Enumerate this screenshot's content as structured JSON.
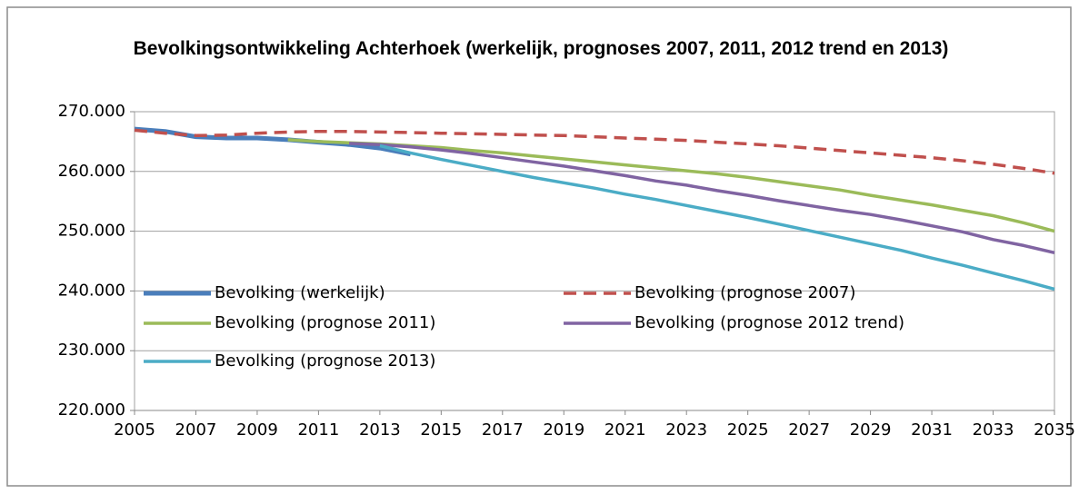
{
  "chart_data": {
    "type": "line",
    "title": "Bevolkingsontwikkeling Achterhoek (werkelijk,  prognoses 2007, 2011, 2012 trend en 2013)",
    "x": [
      2005,
      2006,
      2007,
      2008,
      2009,
      2010,
      2011,
      2012,
      2013,
      2014,
      2015,
      2016,
      2017,
      2018,
      2019,
      2020,
      2021,
      2022,
      2023,
      2024,
      2025,
      2026,
      2027,
      2028,
      2029,
      2030,
      2031,
      2032,
      2033,
      2034,
      2035
    ],
    "xlim": [
      2005,
      2035
    ],
    "xticks": [
      2005,
      2007,
      2009,
      2011,
      2013,
      2015,
      2017,
      2019,
      2021,
      2023,
      2025,
      2027,
      2029,
      2031,
      2033,
      2035
    ],
    "ylim": [
      220000,
      270000
    ],
    "yticks": [
      {
        "value": 220000,
        "label": "220.000"
      },
      {
        "value": 230000,
        "label": "230.000"
      },
      {
        "value": 240000,
        "label": "240.000"
      },
      {
        "value": 250000,
        "label": "250.000"
      },
      {
        "value": 260000,
        "label": "260.000"
      },
      {
        "value": 270000,
        "label": "270.000"
      }
    ],
    "grid": true,
    "series": [
      {
        "name": "Bevolking (werkelijk)",
        "color": "#4a7ebb",
        "line_width": 5,
        "dashed": false,
        "values": [
          267100,
          266700,
          265800,
          265600,
          265600,
          265300,
          264900,
          264500,
          263900,
          262900,
          null,
          null,
          null,
          null,
          null,
          null,
          null,
          null,
          null,
          null,
          null,
          null,
          null,
          null,
          null,
          null,
          null,
          null,
          null,
          null,
          null
        ]
      },
      {
        "name": "Bevolking (prognose 2007)",
        "color": "#c0504d",
        "line_width": 3.5,
        "dashed": true,
        "values": [
          266900,
          266400,
          266000,
          266100,
          266400,
          266600,
          266700,
          266700,
          266600,
          266500,
          266400,
          266300,
          266200,
          266100,
          266000,
          265800,
          265600,
          265400,
          265200,
          264900,
          264600,
          264300,
          263900,
          263500,
          263100,
          262700,
          262300,
          261800,
          261200,
          260500,
          259700
        ]
      },
      {
        "name": "Bevolking (prognose 2011)",
        "color": "#9bbb59",
        "line_width": 3.5,
        "dashed": false,
        "values": [
          null,
          null,
          null,
          null,
          null,
          265300,
          265000,
          264800,
          264600,
          264300,
          264000,
          263500,
          263100,
          262600,
          262100,
          261600,
          261100,
          260600,
          260100,
          259600,
          259000,
          258300,
          257600,
          256900,
          256000,
          255200,
          254400,
          253500,
          252600,
          251400,
          250000
        ]
      },
      {
        "name": "Bevolking (prognose 2012 trend)",
        "color": "#8064a2",
        "line_width": 3.5,
        "dashed": false,
        "values": [
          null,
          null,
          null,
          null,
          null,
          null,
          null,
          264700,
          264500,
          264100,
          263600,
          263000,
          262300,
          261600,
          260900,
          260100,
          259300,
          258400,
          257700,
          256800,
          256000,
          255100,
          254300,
          253500,
          252800,
          251900,
          250900,
          249900,
          248600,
          247600,
          246400
        ]
      },
      {
        "name": "Bevolking (prognose 2013)",
        "color": "#4bacc6",
        "line_width": 3.5,
        "dashed": false,
        "values": [
          null,
          null,
          null,
          null,
          null,
          null,
          null,
          null,
          264300,
          263100,
          262000,
          261000,
          260000,
          259000,
          258100,
          257200,
          256200,
          255300,
          254300,
          253300,
          252300,
          251200,
          250100,
          249000,
          247900,
          246800,
          245500,
          244300,
          243000,
          241700,
          240300
        ]
      }
    ]
  }
}
